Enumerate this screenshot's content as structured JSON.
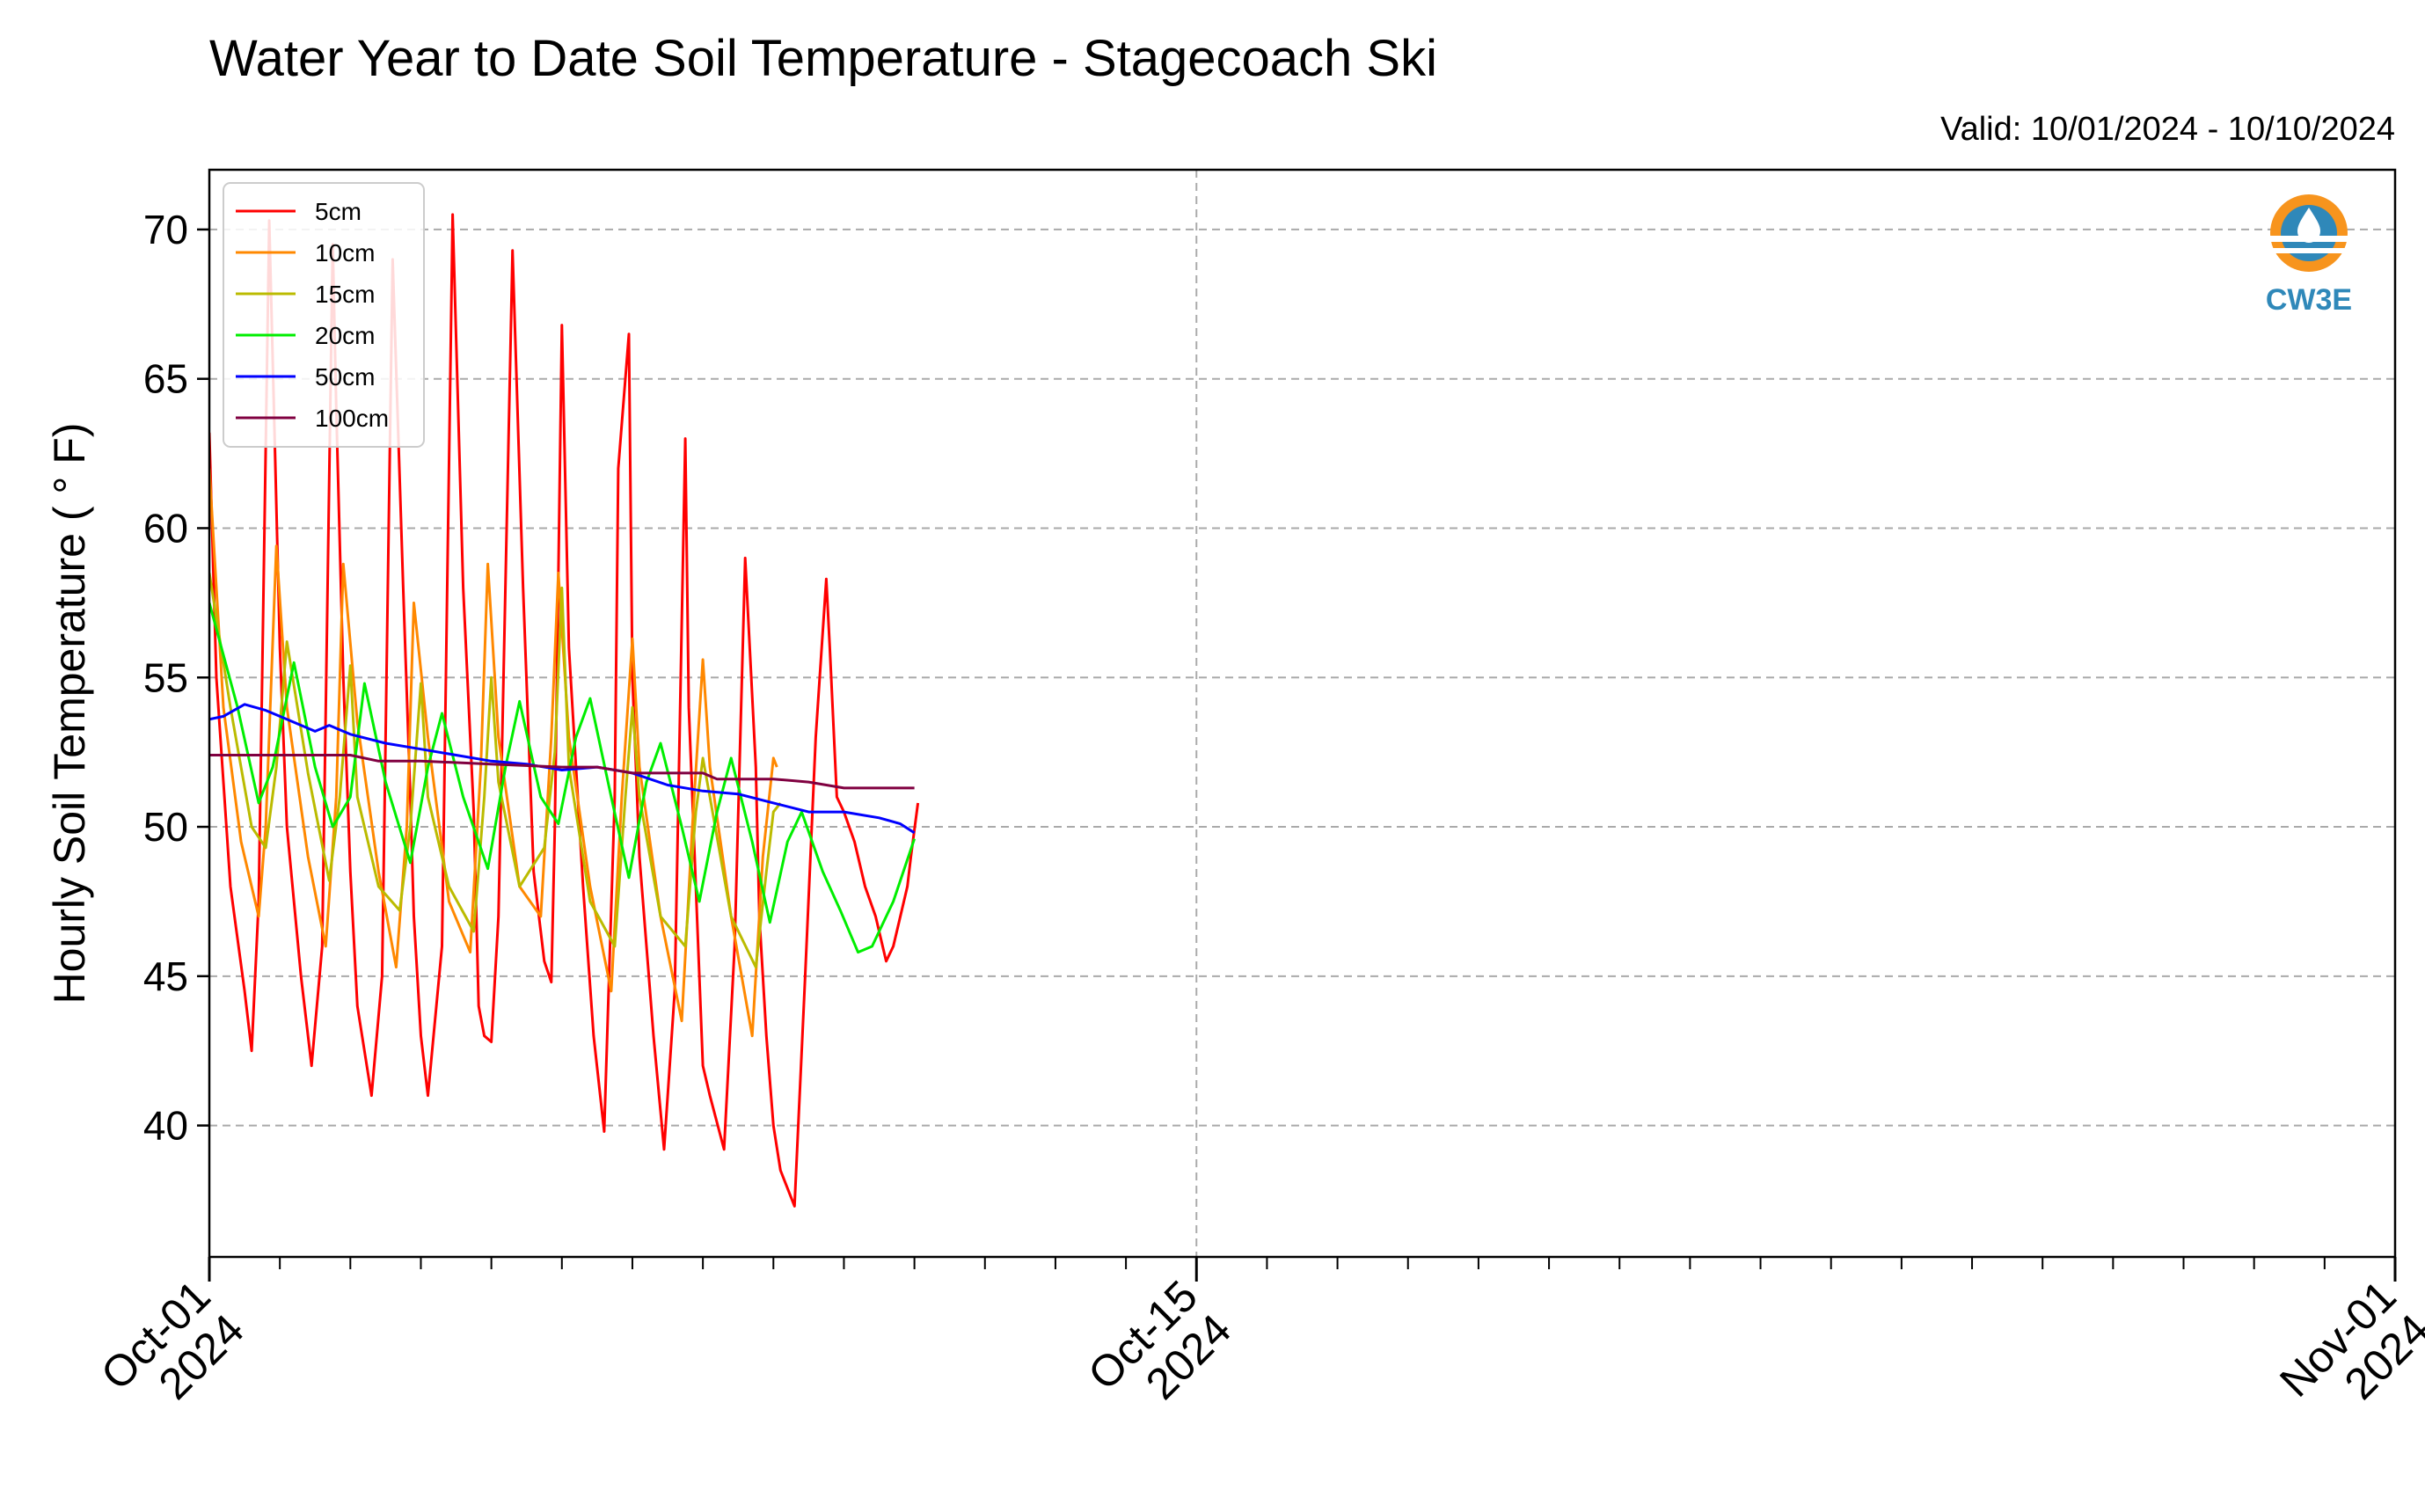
{
  "chart_data": {
    "type": "line",
    "title": "Water Year to Date Soil Temperature - Stagecoach Ski",
    "subtitle": "Valid: 10/01/2024 - 10/10/2024",
    "xlabel": "",
    "ylabel": "Hourly Soil Temperature ( ° F)",
    "x_unit": "day of October 2024",
    "xlim": [
      1,
      32
    ],
    "ylim": [
      35.6,
      72
    ],
    "yticks": [
      40,
      45,
      50,
      55,
      60,
      65,
      70
    ],
    "xticks": [
      {
        "value": 1,
        "line1": "Oct-01",
        "line2": "2024"
      },
      {
        "value": 15,
        "line1": "Oct-15",
        "line2": "2024"
      },
      {
        "value": 32,
        "line1": "Nov-01",
        "line2": "2024"
      }
    ],
    "grid": true,
    "legend_position": "top-left",
    "logo_text": "CW3E",
    "series": [
      {
        "name": "5cm",
        "color": "#ff0000",
        "x": [
          1.0,
          1.1,
          1.3,
          1.5,
          1.6,
          1.7,
          1.85,
          2.0,
          2.1,
          2.3,
          2.45,
          2.6,
          2.75,
          2.8,
          2.9,
          3.0,
          3.1,
          3.3,
          3.45,
          3.6,
          3.75,
          3.85,
          3.9,
          4.0,
          4.1,
          4.3,
          4.45,
          4.6,
          4.75,
          4.82,
          4.9,
          5.0,
          5.1,
          5.3,
          5.45,
          5.6,
          5.75,
          5.85,
          5.9,
          6.0,
          6.1,
          6.3,
          6.45,
          6.6,
          6.75,
          6.8,
          6.95,
          7.0,
          7.1,
          7.3,
          7.45,
          7.6,
          7.75,
          7.8,
          7.9,
          8.0,
          8.1,
          8.3,
          8.45,
          8.6,
          8.75,
          8.8,
          8.9,
          9.0,
          9.1,
          9.3,
          9.45,
          9.6,
          9.75,
          9.8,
          9.9,
          10.0,
          10.15,
          10.3,
          10.45,
          10.55,
          10.6,
          10.7,
          10.8,
          10.9,
          10.95,
          11.05
        ],
        "y": [
          63.2,
          55.0,
          48.0,
          44.5,
          42.5,
          47.5,
          70.3,
          56.0,
          50.0,
          45.0,
          42.0,
          46.0,
          69.5,
          64.0,
          55.0,
          48.5,
          44.0,
          41.0,
          45.0,
          69.0,
          58.0,
          51.0,
          47.0,
          43.0,
          41.0,
          46.0,
          70.5,
          58.0,
          50.5,
          44.0,
          43.0,
          42.8,
          47.0,
          69.3,
          58.0,
          48.5,
          45.5,
          44.8,
          50.0,
          66.8,
          56.0,
          48.0,
          43.0,
          39.8,
          51.0,
          62.0,
          66.5,
          55.0,
          49.0,
          43.0,
          39.2,
          44.5,
          63.0,
          54.0,
          48.0,
          42.0,
          41.0,
          39.2,
          46.0,
          59.0,
          52.0,
          47.0,
          43.0,
          40.0,
          38.5,
          37.3,
          45.0,
          53.0,
          58.3,
          56.0,
          51.0,
          50.5,
          49.5,
          48.0,
          47.0,
          46.0,
          45.5,
          46.0,
          47.0,
          48.0,
          49.0,
          50.8
        ]
      },
      {
        "name": "10cm",
        "color": "#ff8800",
        "x": [
          1.0,
          1.2,
          1.45,
          1.7,
          1.8,
          1.95,
          2.1,
          2.4,
          2.65,
          2.8,
          2.9,
          3.1,
          3.4,
          3.65,
          3.8,
          3.9,
          4.1,
          4.4,
          4.7,
          4.85,
          4.95,
          5.1,
          5.4,
          5.7,
          5.85,
          5.95,
          6.1,
          6.4,
          6.7,
          6.85,
          7.0,
          7.1,
          7.4,
          7.7,
          7.85,
          8.0,
          8.1,
          8.4,
          8.7,
          8.85,
          9.0,
          9.05
        ],
        "y": [
          62.0,
          54.0,
          49.5,
          47.0,
          50.0,
          59.4,
          54.0,
          49.0,
          46.0,
          51.0,
          58.8,
          53.5,
          48.5,
          45.3,
          50.0,
          57.5,
          53.0,
          47.5,
          45.8,
          52.0,
          58.8,
          53.0,
          48.0,
          47.0,
          53.0,
          58.5,
          53.0,
          48.0,
          44.5,
          51.0,
          56.3,
          52.0,
          47.0,
          43.5,
          50.0,
          55.6,
          52.0,
          47.0,
          43.0,
          49.0,
          52.3,
          52.0
        ]
      },
      {
        "name": "15cm",
        "color": "#bbbb00",
        "x": [
          1.0,
          1.3,
          1.6,
          1.8,
          1.95,
          2.1,
          2.4,
          2.7,
          2.85,
          3.0,
          3.1,
          3.4,
          3.7,
          3.85,
          4.0,
          4.1,
          4.4,
          4.75,
          4.9,
          5.0,
          5.1,
          5.4,
          5.75,
          5.9,
          6.0,
          6.1,
          6.4,
          6.75,
          6.9,
          7.0,
          7.1,
          7.4,
          7.75,
          7.9,
          8.0,
          8.1,
          8.4,
          8.75,
          8.9,
          9.0,
          9.1
        ],
        "y": [
          58.5,
          54.0,
          50.0,
          49.3,
          52.0,
          56.2,
          51.8,
          48.2,
          51.0,
          55.4,
          51.0,
          48.0,
          47.2,
          50.0,
          54.8,
          51.0,
          48.0,
          46.5,
          51.0,
          55.0,
          51.5,
          48.0,
          49.3,
          52.5,
          58.0,
          52.0,
          47.5,
          46.0,
          51.0,
          54.0,
          51.0,
          47.0,
          46.0,
          50.5,
          52.3,
          51.0,
          47.0,
          45.3,
          48.5,
          50.5,
          50.8
        ]
      },
      {
        "name": "20cm",
        "color": "#00ee00",
        "x": [
          1.0,
          1.4,
          1.7,
          1.9,
          2.2,
          2.5,
          2.75,
          3.0,
          3.2,
          3.5,
          3.85,
          4.1,
          4.3,
          4.6,
          4.95,
          5.2,
          5.4,
          5.7,
          5.95,
          6.2,
          6.4,
          6.7,
          6.95,
          7.2,
          7.4,
          7.7,
          7.95,
          8.2,
          8.4,
          8.7,
          8.95,
          9.2,
          9.4,
          9.7,
          9.95,
          10.2,
          10.4,
          10.7,
          11.0
        ],
        "y": [
          57.5,
          54.0,
          50.8,
          52.0,
          55.5,
          52.0,
          50.0,
          51.0,
          54.8,
          51.5,
          48.8,
          52.0,
          53.8,
          51.0,
          48.6,
          52.0,
          54.2,
          51.0,
          50.1,
          53.0,
          54.3,
          51.0,
          48.3,
          51.5,
          52.8,
          50.0,
          47.5,
          50.5,
          52.3,
          49.5,
          46.8,
          49.5,
          50.5,
          48.5,
          47.2,
          45.8,
          46.0,
          47.5,
          49.6
        ]
      },
      {
        "name": "50cm",
        "color": "#0000ff",
        "x": [
          1.0,
          1.2,
          1.35,
          1.5,
          1.8,
          2.0,
          2.5,
          2.7,
          3.0,
          3.5,
          4.0,
          4.5,
          5.0,
          5.5,
          6.0,
          6.5,
          7.0,
          7.5,
          8.0,
          8.5,
          9.0,
          9.5,
          10.0,
          10.5,
          10.8,
          11.0
        ],
        "y": [
          53.6,
          53.7,
          53.9,
          54.1,
          53.9,
          53.7,
          53.2,
          53.4,
          53.1,
          52.8,
          52.6,
          52.4,
          52.2,
          52.1,
          51.9,
          52.0,
          51.8,
          51.4,
          51.2,
          51.1,
          50.8,
          50.5,
          50.5,
          50.3,
          50.1,
          49.8
        ]
      },
      {
        "name": "100cm",
        "color": "#800040",
        "x": [
          1.0,
          2.0,
          3.0,
          3.4,
          4.0,
          5.0,
          6.0,
          6.5,
          7.0,
          8.0,
          8.2,
          9.0,
          9.5,
          10.0,
          11.0
        ],
        "y": [
          52.4,
          52.4,
          52.4,
          52.2,
          52.2,
          52.1,
          52.0,
          52.0,
          51.8,
          51.8,
          51.6,
          51.6,
          51.5,
          51.3,
          51.3
        ]
      }
    ]
  }
}
